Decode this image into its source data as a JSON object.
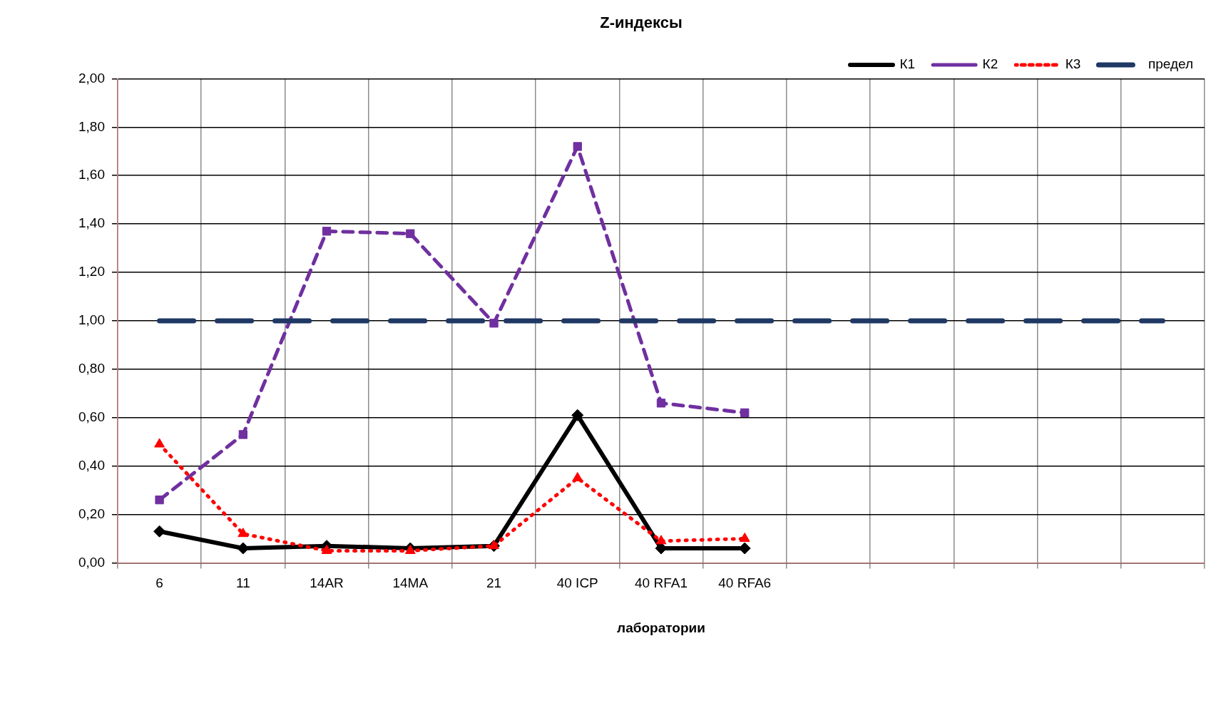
{
  "chart_data": {
    "type": "line",
    "title": "Z-индексы",
    "xlabel": "лаборатории",
    "categories": [
      "6",
      "11",
      "14AR",
      "14MA",
      "21",
      "40 ICP",
      "40 RFA1",
      "40 RFA6",
      null,
      null,
      null,
      null,
      null
    ],
    "series": [
      {
        "name": "К1",
        "color": "#000000",
        "marker": "diamond",
        "line_style": "solid",
        "values": [
          0.13,
          0.06,
          0.07,
          0.06,
          0.07,
          0.61,
          0.06,
          0.06,
          null,
          null,
          null,
          null,
          null
        ]
      },
      {
        "name": "К2",
        "color": "#7030a0",
        "marker": "square",
        "line_style": "dashed",
        "values": [
          0.26,
          0.53,
          1.37,
          1.36,
          0.99,
          1.72,
          0.66,
          0.62,
          null,
          null,
          null,
          null,
          null
        ]
      },
      {
        "name": "К3",
        "color": "#ff0000",
        "marker": "triangle",
        "line_style": "dotted",
        "values": [
          0.49,
          0.12,
          0.05,
          0.05,
          0.07,
          0.35,
          0.09,
          0.1,
          null,
          null,
          null,
          null,
          null
        ]
      },
      {
        "name": "предел",
        "color": "#1f3864",
        "marker": "none",
        "line_style": "dashed",
        "values": [
          1,
          1,
          1,
          1,
          1,
          1,
          1,
          1,
          1,
          1,
          1,
          1,
          1
        ]
      }
    ],
    "ylim": [
      0,
      2
    ],
    "yticks": [
      {
        "value": 0,
        "label": "0,00"
      },
      {
        "value": 0.2,
        "label": "0,20"
      },
      {
        "value": 0.4,
        "label": "0,40"
      },
      {
        "value": 0.6,
        "label": "0,60"
      },
      {
        "value": 0.8,
        "label": "0,80"
      },
      {
        "value": 1,
        "label": "1,00"
      },
      {
        "value": 1.2,
        "label": "1,20"
      },
      {
        "value": 1.4,
        "label": "1,40"
      },
      {
        "value": 1.6,
        "label": "1,60"
      },
      {
        "value": 1.8,
        "label": "1,80"
      },
      {
        "value": 2,
        "label": "2,00"
      }
    ],
    "grid": true,
    "legend": "top right"
  }
}
